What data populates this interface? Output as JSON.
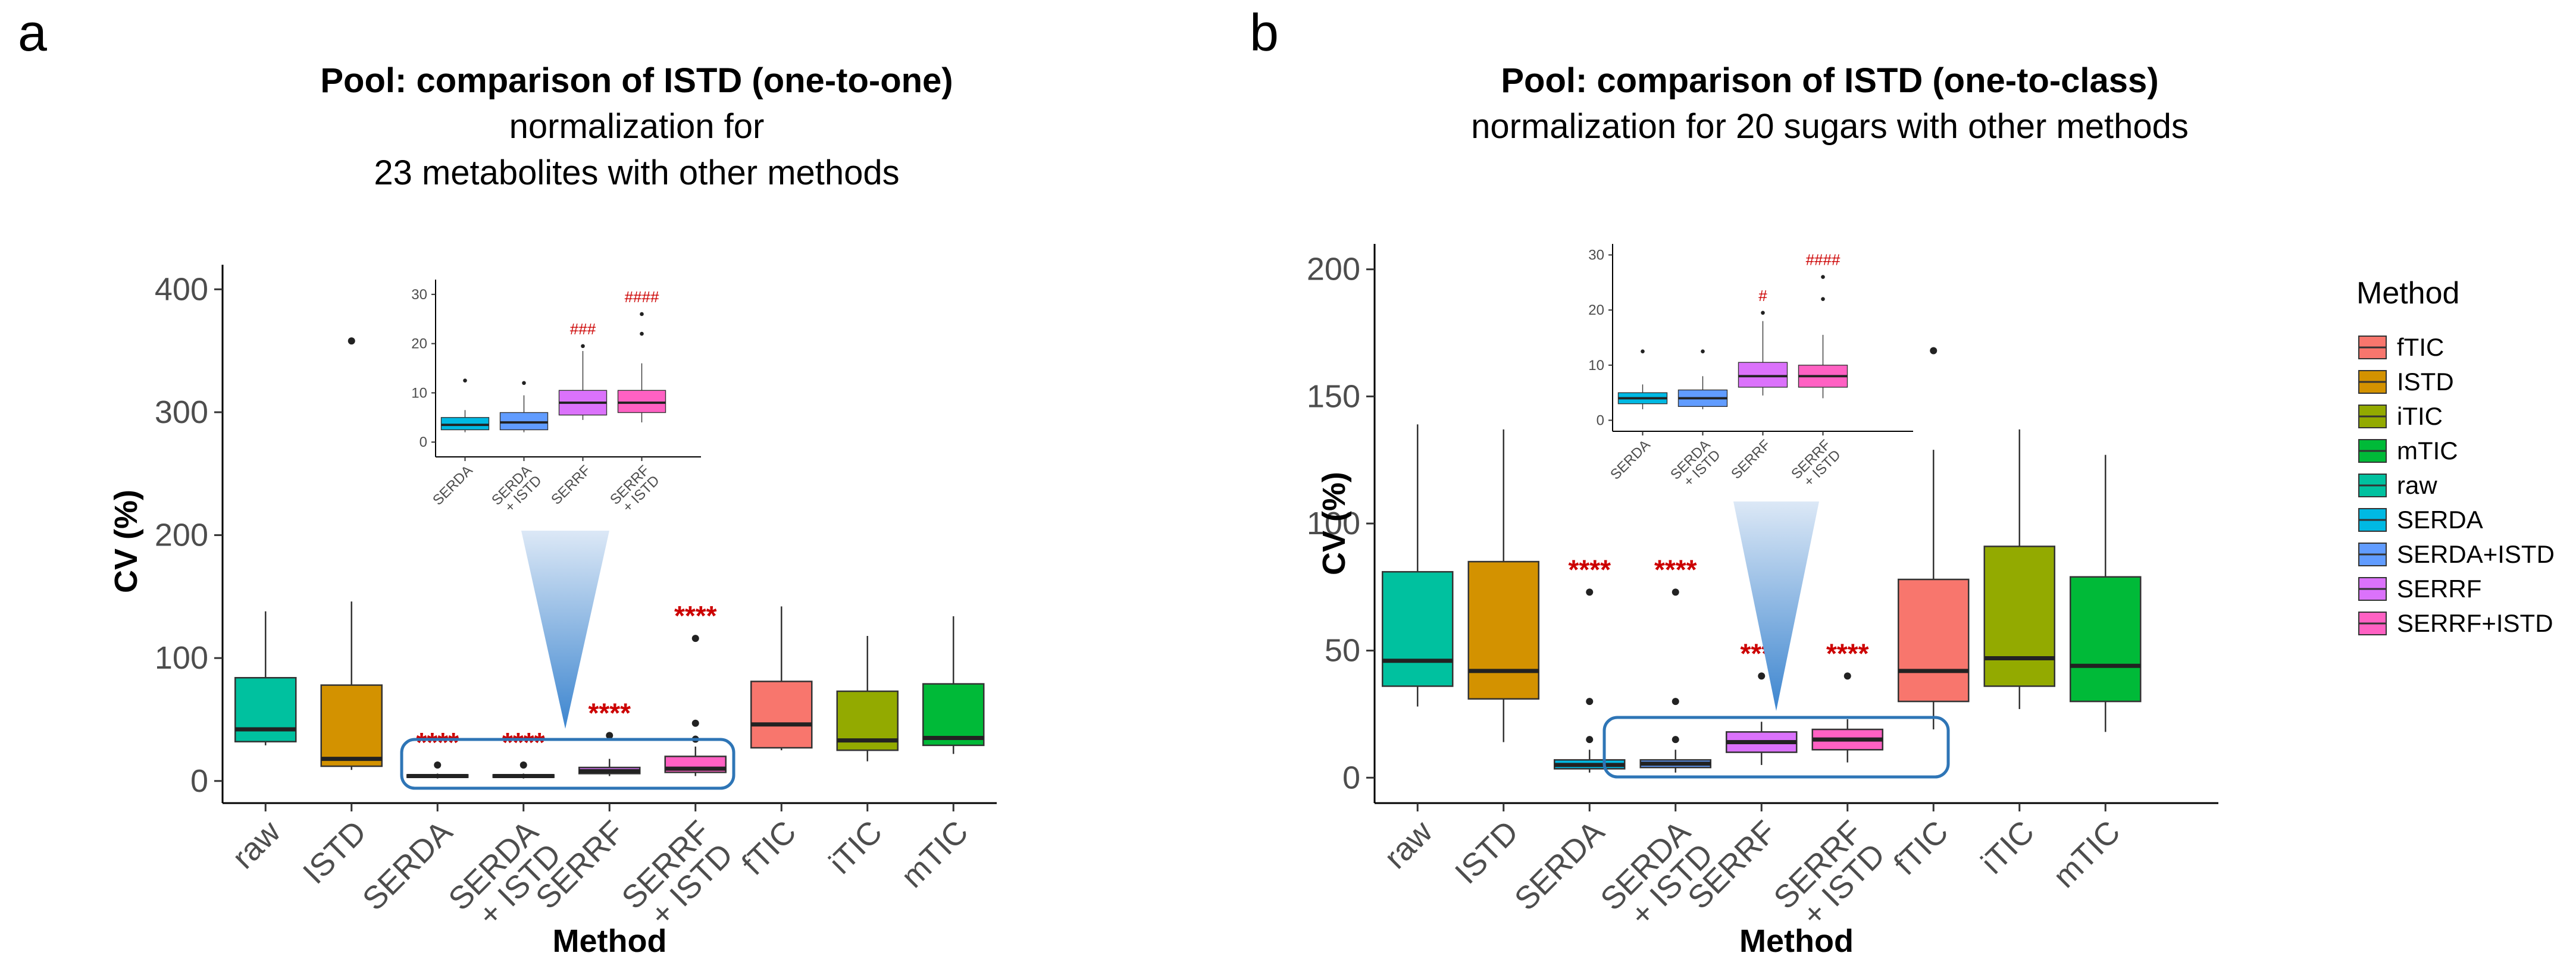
{
  "panels": [
    {
      "label": "a",
      "title_lines": [
        {
          "text": "Pool: comparison of ISTD (one-to-one)",
          "bold": true
        },
        {
          "text": "normalization for",
          "bold": false
        },
        {
          "text": "23 metabolites with other methods",
          "bold": false
        }
      ]
    },
    {
      "label": "b",
      "title_lines": [
        {
          "text": "Pool: comparison of ISTD (one-to-class)",
          "bold": true
        },
        {
          "text": "normalization for 20 sugars with other methods",
          "bold": false
        }
      ]
    }
  ],
  "legend": {
    "title": "Method",
    "items": [
      {
        "label": "fTIC",
        "color": "#F8766D"
      },
      {
        "label": "ISTD",
        "color": "#D39200"
      },
      {
        "label": "iTIC",
        "color": "#93AA00"
      },
      {
        "label": "mTIC",
        "color": "#00BA38"
      },
      {
        "label": "raw",
        "color": "#00C19F"
      },
      {
        "label": "SERDA",
        "color": "#00B9E3"
      },
      {
        "label": "SERDA+ISTD",
        "color": "#619CFF"
      },
      {
        "label": "SERRF",
        "color": "#DB72FB"
      },
      {
        "label": "SERRF+ISTD",
        "color": "#FF61C3"
      }
    ]
  },
  "chart_data": [
    {
      "type": "box",
      "panel": "a",
      "xlabel": "Method",
      "ylabel": "CV (%)",
      "ylim": [
        -18,
        420
      ],
      "yticks": [
        0,
        100,
        200,
        300,
        400
      ],
      "categories": [
        "raw",
        "ISTD",
        "SERDA",
        "SERDA\n+ ISTD",
        "SERRF",
        "SERRF\n+ ISTD",
        "fTIC",
        "iTIC",
        "mTIC"
      ],
      "boxes": [
        {
          "method": "raw",
          "color": "#00C19F",
          "min": 29,
          "q1": 32,
          "median": 42,
          "q3": 84,
          "max": 138,
          "outliers": []
        },
        {
          "method": "ISTD",
          "color": "#D39200",
          "min": 9,
          "q1": 12,
          "median": 18,
          "q3": 78,
          "max": 146,
          "outliers": [
            358
          ]
        },
        {
          "method": "SERDA",
          "color": "#00B9E3",
          "min": 2,
          "q1": 3,
          "median": 4,
          "q3": 5,
          "max": 6,
          "outliers": [
            13
          ]
        },
        {
          "method": "SERDA+ISTD",
          "color": "#619CFF",
          "min": 2,
          "q1": 3,
          "median": 4,
          "q3": 5,
          "max": 6,
          "outliers": [
            13
          ]
        },
        {
          "method": "SERRF",
          "color": "#DB72FB",
          "min": 4,
          "q1": 6,
          "median": 8,
          "q3": 11,
          "max": 18,
          "outliers": [
            37
          ]
        },
        {
          "method": "SERRF+ISTD",
          "color": "#FF61C3",
          "min": 4,
          "q1": 7,
          "median": 10,
          "q3": 20,
          "max": 28,
          "outliers": [
            34,
            47,
            116
          ]
        },
        {
          "method": "fTIC",
          "color": "#F8766D",
          "min": 25,
          "q1": 27,
          "median": 46,
          "q3": 81,
          "max": 142,
          "outliers": []
        },
        {
          "method": "iTIC",
          "color": "#93AA00",
          "min": 16,
          "q1": 25,
          "median": 33,
          "q3": 73,
          "max": 118,
          "outliers": []
        },
        {
          "method": "mTIC",
          "color": "#00BA38",
          "min": 22,
          "q1": 29,
          "median": 35,
          "q3": 79,
          "max": 134,
          "outliers": []
        }
      ],
      "annotations": [
        {
          "category": "SERDA",
          "text": "****"
        },
        {
          "category": "SERDA\n+ ISTD",
          "text": "****"
        },
        {
          "category": "SERRF",
          "text": "****"
        },
        {
          "category": "SERRF\n+ ISTD",
          "text": "****"
        }
      ],
      "inset": {
        "ylim": [
          -3,
          33
        ],
        "yticks": [
          0,
          10,
          20,
          30
        ],
        "categories": [
          "SERDA",
          "SERDA\n+ ISTD",
          "SERRF",
          "SERRF\n+ ISTD"
        ],
        "boxes": [
          {
            "method": "SERDA",
            "color": "#00B9E3",
            "min": 2,
            "q1": 2.5,
            "median": 3.5,
            "q3": 5,
            "max": 6.5,
            "outliers": [
              12.5
            ]
          },
          {
            "method": "SERDA+ISTD",
            "color": "#619CFF",
            "min": 2,
            "q1": 2.5,
            "median": 4,
            "q3": 6,
            "max": 9.5,
            "outliers": [
              12
            ]
          },
          {
            "method": "SERRF",
            "color": "#DB72FB",
            "min": 4.5,
            "q1": 5.5,
            "median": 8,
            "q3": 10.5,
            "max": 18.5,
            "outliers": [
              19.5
            ]
          },
          {
            "method": "SERRF+ISTD",
            "color": "#FF61C3",
            "min": 4,
            "q1": 6,
            "median": 8,
            "q3": 10.5,
            "max": 16,
            "outliers": [
              22,
              26
            ]
          }
        ],
        "annotations": [
          {
            "category": "SERRF",
            "text": "###"
          },
          {
            "category": "SERRF\n+ ISTD",
            "text": "####"
          }
        ]
      }
    },
    {
      "type": "box",
      "panel": "b",
      "xlabel": "Method",
      "ylabel": "CV (%)",
      "ylim": [
        -10,
        210
      ],
      "yticks": [
        0,
        50,
        100,
        150,
        200
      ],
      "categories": [
        "raw",
        "ISTD",
        "SERDA",
        "SERDA\n+ ISTD",
        "SERRF",
        "SERRF\n+ ISTD",
        "fTIC",
        "iTIC",
        "mTIC"
      ],
      "boxes": [
        {
          "method": "raw",
          "color": "#00C19F",
          "min": 28,
          "q1": 36,
          "median": 46,
          "q3": 81,
          "max": 139,
          "outliers": []
        },
        {
          "method": "ISTD",
          "color": "#D39200",
          "min": 14,
          "q1": 31,
          "median": 42,
          "q3": 85,
          "max": 137,
          "outliers": []
        },
        {
          "method": "SERDA",
          "color": "#00B9E3",
          "min": 2,
          "q1": 3.5,
          "median": 5,
          "q3": 7,
          "max": 11,
          "outliers": [
            15,
            30,
            73
          ]
        },
        {
          "method": "SERDA+ISTD",
          "color": "#619CFF",
          "min": 2,
          "q1": 4,
          "median": 5.5,
          "q3": 7,
          "max": 11,
          "outliers": [
            15,
            30,
            73
          ]
        },
        {
          "method": "SERRF",
          "color": "#DB72FB",
          "min": 5,
          "q1": 10,
          "median": 14,
          "q3": 18,
          "max": 22,
          "outliers": [
            40
          ]
        },
        {
          "method": "SERRF+ISTD",
          "color": "#FF61C3",
          "min": 6,
          "q1": 11,
          "median": 15,
          "q3": 19,
          "max": 23,
          "outliers": [
            40
          ]
        },
        {
          "method": "fTIC",
          "color": "#F8766D",
          "min": 19,
          "q1": 30,
          "median": 42,
          "q3": 78,
          "max": 129,
          "outliers": [
            168
          ]
        },
        {
          "method": "iTIC",
          "color": "#93AA00",
          "min": 27,
          "q1": 36,
          "median": 47,
          "q3": 91,
          "max": 137,
          "outliers": []
        },
        {
          "method": "mTIC",
          "color": "#00BA38",
          "min": 18,
          "q1": 30,
          "median": 44,
          "q3": 79,
          "max": 127,
          "outliers": []
        }
      ],
      "annotations": [
        {
          "category": "SERDA",
          "text": "****"
        },
        {
          "category": "SERDA\n+ ISTD",
          "text": "****"
        },
        {
          "category": "SERRF",
          "text": "****"
        },
        {
          "category": "SERRF\n+ ISTD",
          "text": "****"
        }
      ],
      "inset": {
        "ylim": [
          -2,
          32
        ],
        "yticks": [
          0,
          10,
          20,
          30
        ],
        "categories": [
          "SERDA",
          "SERDA\n+ ISTD",
          "SERRF",
          "SERRF\n+ ISTD"
        ],
        "boxes": [
          {
            "method": "SERDA",
            "color": "#00B9E3",
            "min": 2,
            "q1": 3,
            "median": 4,
            "q3": 5,
            "max": 6.5,
            "outliers": [
              12.5
            ]
          },
          {
            "method": "SERDA+ISTD",
            "color": "#619CFF",
            "min": 2,
            "q1": 2.5,
            "median": 4,
            "q3": 5.5,
            "max": 8,
            "outliers": [
              12.5
            ]
          },
          {
            "method": "SERRF",
            "color": "#DB72FB",
            "min": 4.5,
            "q1": 6,
            "median": 8,
            "q3": 10.5,
            "max": 18,
            "outliers": [
              19.5
            ]
          },
          {
            "method": "SERRF+ISTD",
            "color": "#FF61C3",
            "min": 4,
            "q1": 6,
            "median": 8,
            "q3": 10,
            "max": 15.5,
            "outliers": [
              22,
              26
            ]
          }
        ],
        "annotations": [
          {
            "category": "SERRF",
            "text": "#"
          },
          {
            "category": "SERRF\n+ ISTD",
            "text": "####"
          }
        ]
      }
    }
  ]
}
